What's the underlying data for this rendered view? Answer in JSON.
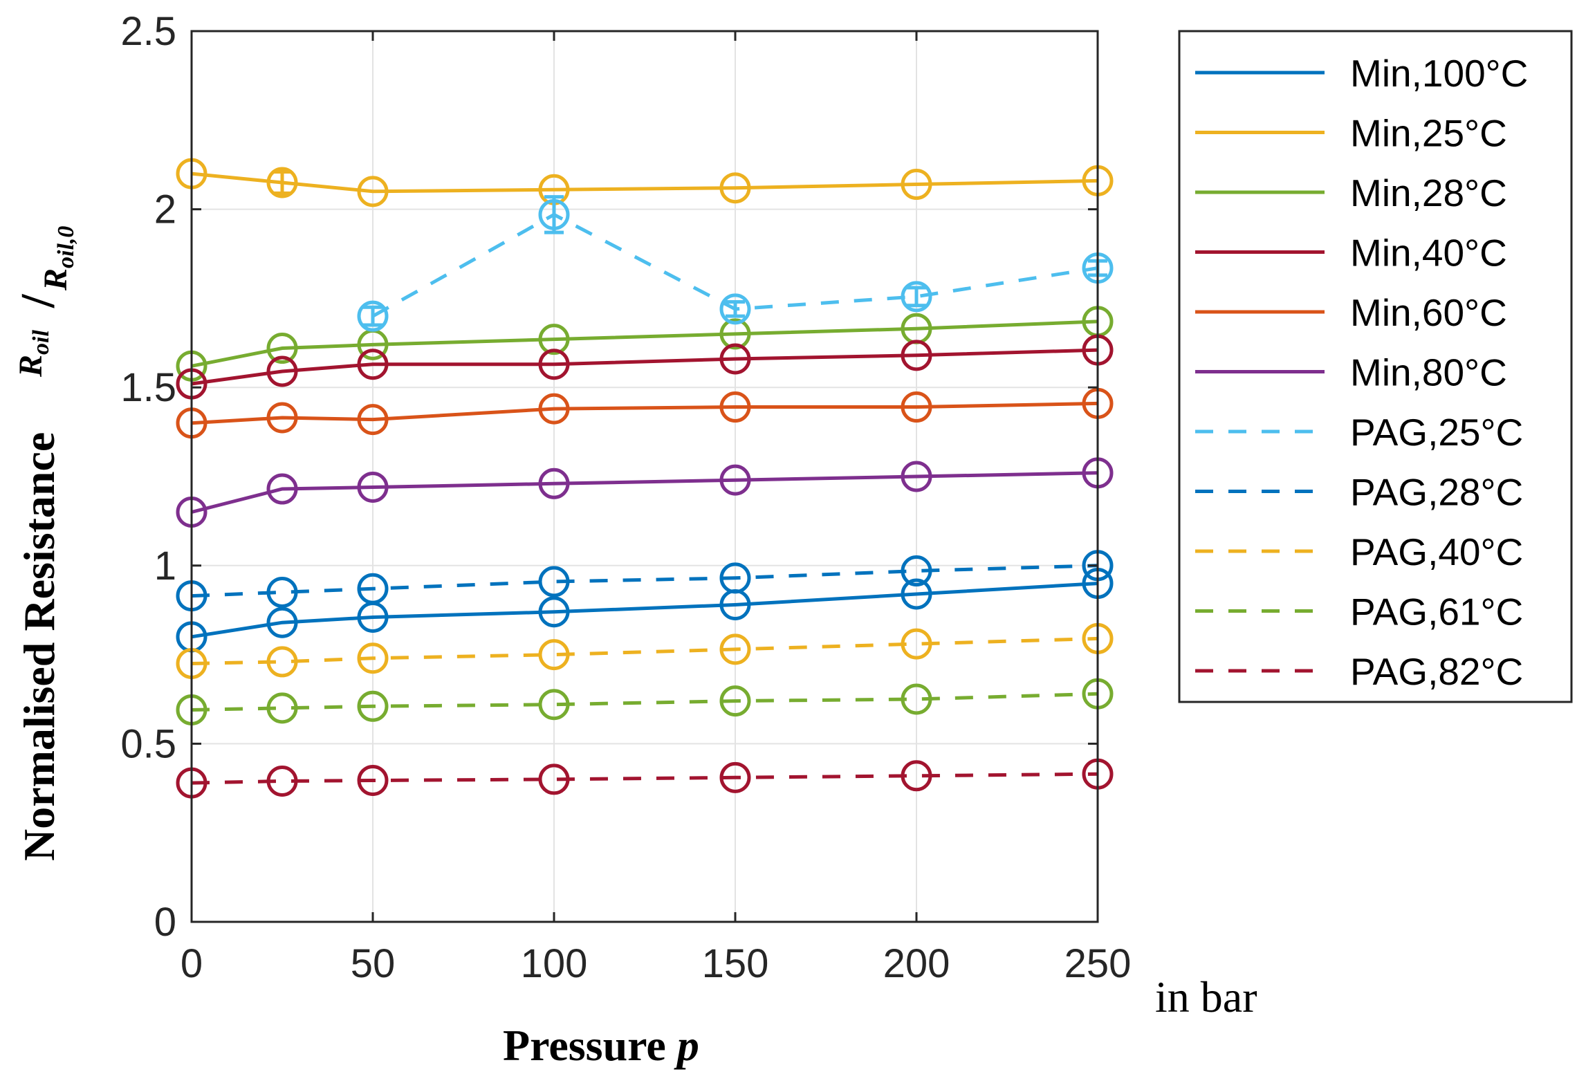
{
  "chart_data": {
    "type": "line",
    "title": "",
    "xlabel": "Pressure",
    "xlabel_symbol": "p",
    "x_unit": "in bar",
    "ylabel": "Normalised Resistance",
    "ylabel_ratio": {
      "numerator": "R",
      "numerator_sub": "oil",
      "denominator": "R",
      "denominator_sub": "oil,0"
    },
    "xlim": [
      0,
      250
    ],
    "ylim": [
      0,
      2.5
    ],
    "xticks": [
      0,
      50,
      100,
      150,
      200,
      250
    ],
    "yticks": [
      0,
      0.5,
      1,
      1.5,
      2,
      2.5
    ],
    "xtick_labels": [
      "0",
      "50",
      "100",
      "150",
      "200",
      "250"
    ],
    "ytick_labels": [
      "0",
      "0.5",
      "1",
      "1.5",
      "2",
      "2.5"
    ],
    "grid": true,
    "legend_position": "outside-right-top",
    "marker": "circle",
    "series": [
      {
        "name": "Min,100°C",
        "color": "#0072BD",
        "dash": "solid",
        "points": [
          [
            0,
            0.8
          ],
          [
            25,
            0.84
          ],
          [
            50,
            0.855
          ],
          [
            100,
            0.87
          ],
          [
            150,
            0.89
          ],
          [
            200,
            0.92
          ],
          [
            250,
            0.95
          ]
        ]
      },
      {
        "name": "Min,25°C",
        "color": "#EDB120",
        "dash": "solid",
        "points": [
          [
            0,
            2.1
          ],
          [
            25,
            2.075
          ],
          [
            50,
            2.05
          ],
          [
            100,
            2.055
          ],
          [
            150,
            2.06
          ],
          [
            200,
            2.07
          ],
          [
            250,
            2.08
          ]
        ],
        "errors": [
          0,
          0.03,
          0,
          0,
          0,
          0,
          0
        ]
      },
      {
        "name": "Min,28°C",
        "color": "#77AC30",
        "dash": "solid",
        "points": [
          [
            0,
            1.56
          ],
          [
            25,
            1.61
          ],
          [
            50,
            1.62
          ],
          [
            100,
            1.635
          ],
          [
            150,
            1.65
          ],
          [
            200,
            1.665
          ],
          [
            250,
            1.685
          ]
        ]
      },
      {
        "name": "Min,40°C",
        "color": "#A2142F",
        "dash": "solid",
        "points": [
          [
            0,
            1.51
          ],
          [
            25,
            1.545
          ],
          [
            50,
            1.565
          ],
          [
            100,
            1.565
          ],
          [
            150,
            1.58
          ],
          [
            200,
            1.59
          ],
          [
            250,
            1.605
          ]
        ]
      },
      {
        "name": "Min,60°C",
        "color": "#D95319",
        "dash": "solid",
        "points": [
          [
            0,
            1.4
          ],
          [
            25,
            1.415
          ],
          [
            50,
            1.41
          ],
          [
            100,
            1.44
          ],
          [
            150,
            1.445
          ],
          [
            200,
            1.445
          ],
          [
            250,
            1.455
          ]
        ]
      },
      {
        "name": "Min,80°C",
        "color": "#7E2F8E",
        "dash": "solid",
        "points": [
          [
            0,
            1.15
          ],
          [
            25,
            1.215
          ],
          [
            50,
            1.22
          ],
          [
            100,
            1.23
          ],
          [
            150,
            1.24
          ],
          [
            200,
            1.25
          ],
          [
            250,
            1.26
          ]
        ]
      },
      {
        "name": "PAG,25°C",
        "color": "#4DBEEE",
        "dash": "dashed",
        "points": [
          [
            50,
            1.7
          ],
          [
            100,
            1.985
          ],
          [
            150,
            1.72
          ],
          [
            200,
            1.755
          ],
          [
            250,
            1.835
          ]
        ],
        "errors": [
          0.025,
          0.05,
          0.02,
          0.025,
          0.02
        ]
      },
      {
        "name": "PAG,28°C",
        "color": "#0072BD",
        "dash": "dashed",
        "points": [
          [
            0,
            0.915
          ],
          [
            25,
            0.925
          ],
          [
            50,
            0.935
          ],
          [
            100,
            0.955
          ],
          [
            150,
            0.965
          ],
          [
            200,
            0.985
          ],
          [
            250,
            1.0
          ]
        ]
      },
      {
        "name": "PAG,40°C",
        "color": "#EDB120",
        "dash": "dashed",
        "points": [
          [
            0,
            0.725
          ],
          [
            25,
            0.73
          ],
          [
            50,
            0.74
          ],
          [
            100,
            0.75
          ],
          [
            150,
            0.765
          ],
          [
            200,
            0.78
          ],
          [
            250,
            0.795
          ]
        ]
      },
      {
        "name": "PAG,61°C",
        "color": "#77AC30",
        "dash": "dashed",
        "points": [
          [
            0,
            0.595
          ],
          [
            25,
            0.6
          ],
          [
            50,
            0.605
          ],
          [
            100,
            0.61
          ],
          [
            150,
            0.62
          ],
          [
            200,
            0.625
          ],
          [
            250,
            0.64
          ]
        ]
      },
      {
        "name": "PAG,82°C",
        "color": "#A2142F",
        "dash": "dashed",
        "points": [
          [
            0,
            0.39
          ],
          [
            25,
            0.395
          ],
          [
            50,
            0.397
          ],
          [
            100,
            0.4
          ],
          [
            150,
            0.405
          ],
          [
            200,
            0.41
          ],
          [
            250,
            0.415
          ]
        ]
      }
    ]
  }
}
